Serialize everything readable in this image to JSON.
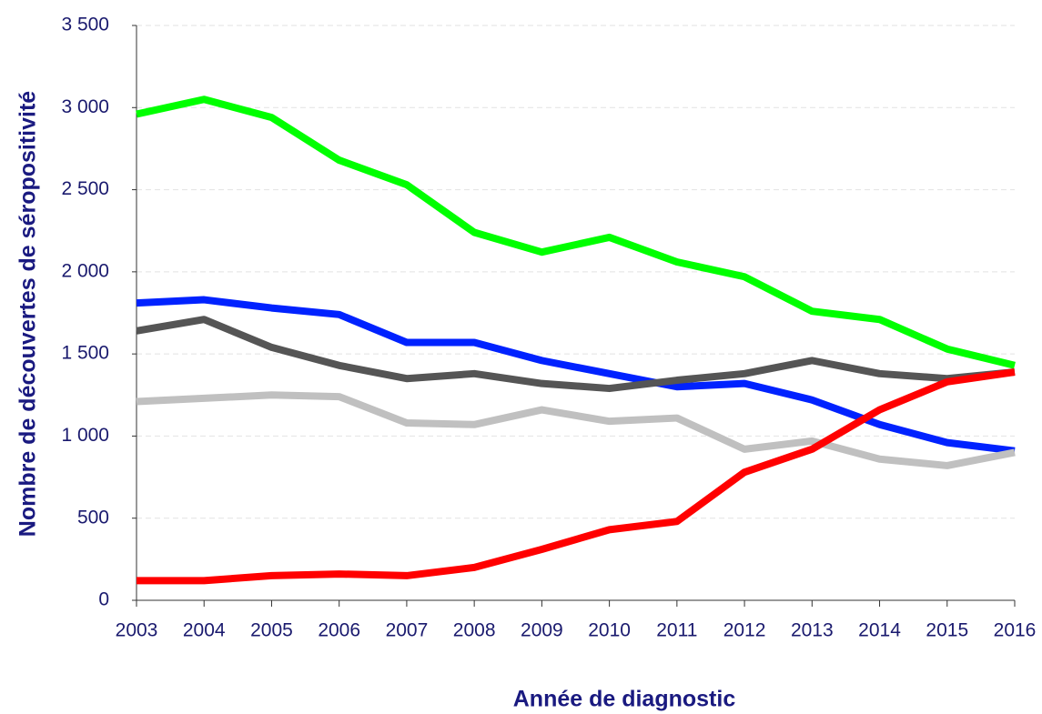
{
  "chart_data": {
    "type": "line",
    "xlabel": "Année de diagnostic",
    "ylabel": "Nombre de découvertes de séropositivité",
    "categories": [
      "2003",
      "2004",
      "2005",
      "2006",
      "2007",
      "2008",
      "2009",
      "2010",
      "2011",
      "2012",
      "2013",
      "2014",
      "2015",
      "2016"
    ],
    "series": [
      {
        "color": "#00ff00",
        "values": [
          2960,
          3050,
          2940,
          2680,
          2530,
          2240,
          2120,
          2210,
          2060,
          1970,
          1760,
          1710,
          1530,
          1430
        ]
      },
      {
        "color": "#0022ff",
        "values": [
          1810,
          1830,
          1780,
          1740,
          1570,
          1570,
          1460,
          1380,
          1300,
          1320,
          1220,
          1070,
          960,
          910
        ]
      },
      {
        "color": "#555555",
        "values": [
          1640,
          1710,
          1540,
          1430,
          1350,
          1380,
          1320,
          1290,
          1340,
          1380,
          1460,
          1380,
          1350,
          1390
        ]
      },
      {
        "color": "#c0c0c0",
        "values": [
          1210,
          1230,
          1250,
          1240,
          1080,
          1070,
          1160,
          1090,
          1110,
          920,
          970,
          860,
          820,
          900
        ]
      },
      {
        "color": "#ff0000",
        "values": [
          120,
          120,
          150,
          160,
          150,
          200,
          310,
          430,
          480,
          780,
          920,
          1160,
          1330,
          1390
        ]
      }
    ],
    "ylim": [
      0,
      3500
    ],
    "yticks": [
      0,
      500,
      {
        "value": 1000,
        "label": "1 000"
      },
      {
        "value": 1500,
        "label": "1 500"
      },
      {
        "value": 2000,
        "label": "2 000"
      },
      {
        "value": 2500,
        "label": "2 500"
      },
      {
        "value": 3000,
        "label": "3 000"
      },
      {
        "value": 3500,
        "label": "3 500"
      }
    ],
    "grid": true
  }
}
